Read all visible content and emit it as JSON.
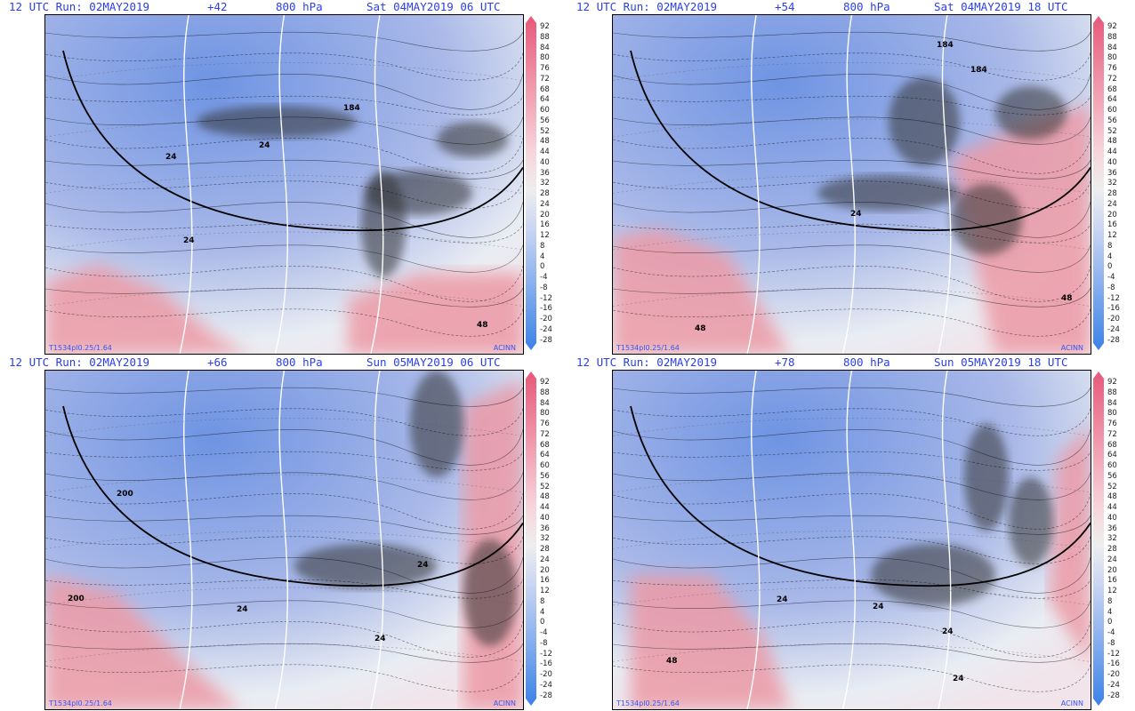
{
  "colors": {
    "header_text": "#2a3fe6",
    "cold": "#6f94e3",
    "neutral": "#e9edf3",
    "warm": "#ec9aa6",
    "storm_shading": "#333333",
    "contour": "#000000",
    "isoline_white": "#ffffff"
  },
  "panels": [
    {
      "id": "p1",
      "run_label": "12 UTC Run: 02MAY2019",
      "lead": "+42",
      "level": "800 hPa",
      "valid": "Sat 04MAY2019 06 UTC",
      "footer_left": "T1534pl0.25/1.64",
      "footer_right": "ACINN",
      "labels": [
        "24",
        "24",
        "24",
        "184",
        "48"
      ]
    },
    {
      "id": "p2",
      "run_label": "12 UTC Run: 02MAY2019",
      "lead": "+54",
      "level": "800 hPa",
      "valid": "Sat 04MAY2019 18 UTC",
      "footer_left": "T1534pl0.25/1.64",
      "footer_right": "ACINN",
      "labels": [
        "24",
        "184",
        "184",
        "48",
        "48"
      ]
    },
    {
      "id": "p3",
      "run_label": "12 UTC Run: 02MAY2019",
      "lead": "+66",
      "level": "800 hPa",
      "valid": "Sun 05MAY2019 06 UTC",
      "footer_left": "T1534pl0.25/1.64",
      "footer_right": "ACINN",
      "labels": [
        "200",
        "200",
        "24",
        "24",
        "24"
      ]
    },
    {
      "id": "p4",
      "run_label": "12 UTC Run: 02MAY2019",
      "lead": "+78",
      "level": "800 hPa",
      "valid": "Sun 05MAY2019 18 UTC",
      "footer_left": "T1534pl0.25/1.64",
      "footer_right": "ACINN",
      "labels": [
        "24",
        "24",
        "24",
        "24",
        "48"
      ]
    }
  ],
  "colorbar_ticks": [
    "92",
    "88",
    "84",
    "80",
    "76",
    "72",
    "68",
    "64",
    "60",
    "56",
    "52",
    "48",
    "44",
    "40",
    "36",
    "32",
    "28",
    "24",
    "20",
    "16",
    "12",
    "8",
    "4",
    "0",
    "-4",
    "-8",
    "-12",
    "-16",
    "-20",
    "-24",
    "-28"
  ]
}
